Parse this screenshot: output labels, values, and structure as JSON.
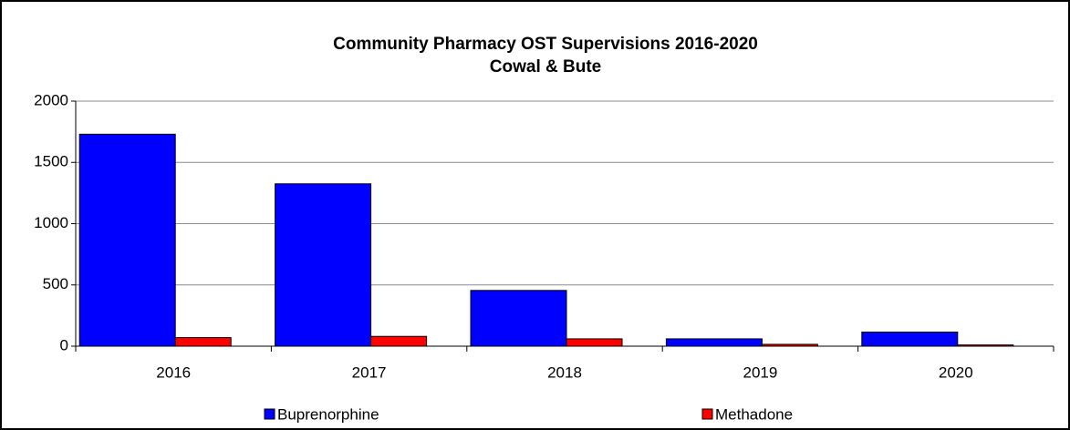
{
  "chart_data": {
    "type": "bar",
    "title": "Community Pharmacy OST Supervisions 2016-2020",
    "subtitle": "Cowal & Bute",
    "categories": [
      "2016",
      "2017",
      "2018",
      "2019",
      "2020"
    ],
    "series": [
      {
        "name": "Buprenorphine",
        "color": "#0000ff",
        "values": [
          1730,
          1325,
          455,
          60,
          115
        ]
      },
      {
        "name": "Methadone",
        "color": "#ff0000",
        "values": [
          70,
          80,
          60,
          15,
          10
        ]
      }
    ],
    "ylim": [
      0,
      2000
    ],
    "yticks": [
      0,
      500,
      1000,
      1500,
      2000
    ],
    "grid": true,
    "legend": "bottom"
  }
}
